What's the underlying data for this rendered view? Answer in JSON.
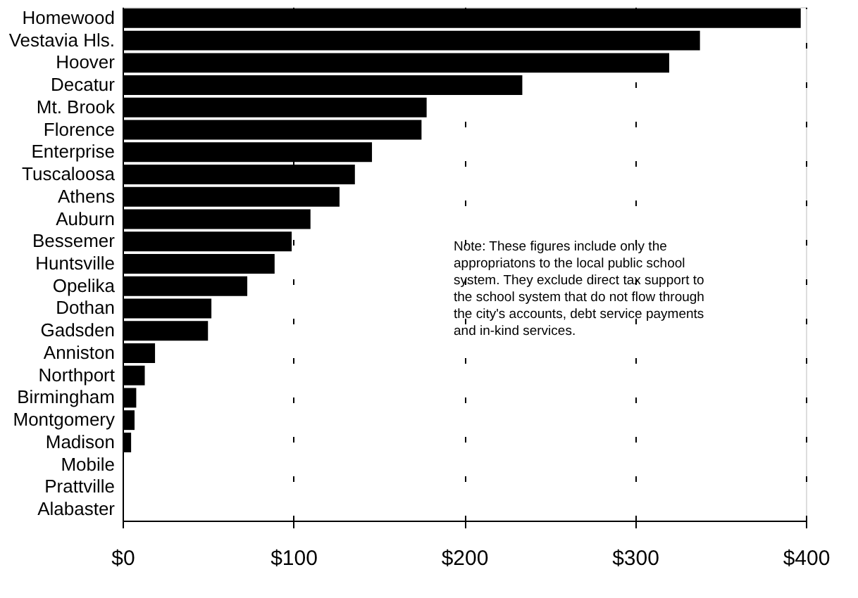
{
  "chart_data": {
    "type": "bar",
    "orientation": "horizontal",
    "categories": [
      "Homewood",
      "Vestavia Hls.",
      "Hoover",
      "Decatur",
      "Mt. Brook",
      "Florence",
      "Enterprise",
      "Tuscaloosa",
      "Athens",
      "Auburn",
      "Bessemer",
      "Huntsville",
      "Opelika",
      "Dothan",
      "Gadsden",
      "Anniston",
      "Northport",
      "Birmingham",
      "Montgomery",
      "Madison",
      "Mobile",
      "Prattville",
      "Alabaster"
    ],
    "values": [
      397,
      338,
      320,
      234,
      178,
      175,
      146,
      136,
      127,
      110,
      99,
      89,
      73,
      52,
      50,
      19,
      13,
      8,
      7,
      5,
      0,
      0,
      0
    ],
    "color": "#000000",
    "xlim": [
      0,
      400
    ],
    "xticks": [
      {
        "value": 0,
        "label": "$0"
      },
      {
        "value": 100,
        "label": "$100"
      },
      {
        "value": 200,
        "label": "$200"
      },
      {
        "value": 300,
        "label": "$300"
      },
      {
        "value": 400,
        "label": "$400"
      }
    ],
    "grid": "x",
    "annotations": [
      {
        "text": "Note:  These figures include only the appropriatons to the local public school system.  They exclude direct tax support to the school system that do not flow through the city's accounts, debt service payments and in-kind services."
      }
    ]
  }
}
